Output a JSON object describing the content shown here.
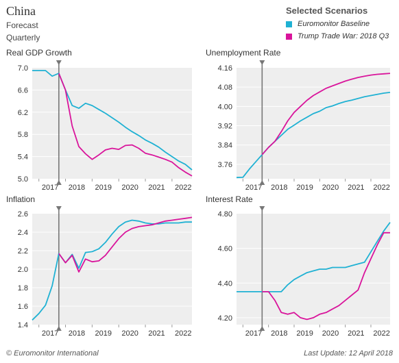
{
  "header": {
    "title": "China",
    "subtitle1": "Forecast",
    "subtitle2": "Quarterly"
  },
  "legend": {
    "title": "Selected Scenarios",
    "items": [
      {
        "label": "Euromonitor Baseline",
        "color": "#1fb1d3"
      },
      {
        "label": "Trump Trade War: 2018 Q3",
        "color": "#d9149b"
      }
    ]
  },
  "colors": {
    "baseline": "#1fb1d3",
    "scenario": "#d9149b",
    "panel_bg": "#eeeeee",
    "marker": "#777777"
  },
  "footer": {
    "source": "© Euromonitor International",
    "updated": "Last Update: 12 April 2018"
  },
  "chart_data": [
    {
      "type": "line",
      "title": "Real GDP Growth",
      "xlim": [
        2016.75,
        2022.75
      ],
      "ylim": [
        5.0,
        7.0
      ],
      "yticks": [
        "5.0",
        "5.4",
        "5.8",
        "6.2",
        "6.6",
        "7.0"
      ],
      "xticks": [
        "2017",
        "2018",
        "2019",
        "2020",
        "2021",
        "2022"
      ],
      "marker_x": 2017.75,
      "x": [
        2016.75,
        2017.0,
        2017.25,
        2017.5,
        2017.75,
        2018.0,
        2018.25,
        2018.5,
        2018.75,
        2019.0,
        2019.25,
        2019.5,
        2019.75,
        2020.0,
        2020.25,
        2020.5,
        2020.75,
        2021.0,
        2021.25,
        2021.5,
        2021.75,
        2022.0,
        2022.25,
        2022.5,
        2022.75
      ],
      "series": [
        {
          "name": "Euromonitor Baseline",
          "values": [
            6.95,
            6.95,
            6.95,
            6.85,
            6.9,
            6.6,
            6.32,
            6.27,
            6.36,
            6.32,
            6.25,
            6.18,
            6.1,
            6.02,
            5.93,
            5.85,
            5.78,
            5.7,
            5.64,
            5.57,
            5.48,
            5.4,
            5.32,
            5.26,
            5.16
          ]
        },
        {
          "name": "Trump Trade War: 2018 Q3",
          "values": [
            null,
            null,
            null,
            null,
            6.9,
            6.6,
            5.95,
            5.58,
            5.45,
            5.35,
            5.43,
            5.52,
            5.55,
            5.53,
            5.6,
            5.61,
            5.55,
            5.46,
            5.43,
            5.39,
            5.35,
            5.3,
            5.2,
            5.12,
            5.05
          ]
        }
      ]
    },
    {
      "type": "line",
      "title": "Unemployment Rate",
      "xlim": [
        2016.75,
        2022.75
      ],
      "ylim": [
        3.7,
        4.16
      ],
      "yticks": [
        "3.76",
        "3.84",
        "3.92",
        "4.00",
        "4.08",
        "4.16"
      ],
      "xticks": [
        "2017",
        "2018",
        "2019",
        "2020",
        "2021",
        "2022"
      ],
      "marker_x": 2017.75,
      "x": [
        2016.75,
        2017.0,
        2017.25,
        2017.5,
        2017.75,
        2018.0,
        2018.25,
        2018.5,
        2018.75,
        2019.0,
        2019.25,
        2019.5,
        2019.75,
        2020.0,
        2020.25,
        2020.5,
        2020.75,
        2021.0,
        2021.25,
        2021.5,
        2021.75,
        2022.0,
        2022.25,
        2022.5,
        2022.75
      ],
      "series": [
        {
          "name": "Euromonitor Baseline",
          "values": [
            3.705,
            3.706,
            3.74,
            3.77,
            3.8,
            3.83,
            3.855,
            3.88,
            3.905,
            3.922,
            3.94,
            3.955,
            3.97,
            3.98,
            3.995,
            4.002,
            4.012,
            4.02,
            4.026,
            4.033,
            4.04,
            4.045,
            4.05,
            4.055,
            4.058
          ]
        },
        {
          "name": "Trump Trade War: 2018 Q3",
          "values": [
            null,
            null,
            null,
            null,
            3.8,
            3.83,
            3.855,
            3.895,
            3.94,
            3.975,
            4.0,
            4.025,
            4.045,
            4.06,
            4.075,
            4.085,
            4.095,
            4.105,
            4.113,
            4.12,
            4.125,
            4.13,
            4.133,
            4.135,
            4.137
          ]
        }
      ]
    },
    {
      "type": "line",
      "title": "Inflation",
      "xlim": [
        2016.75,
        2022.75
      ],
      "ylim": [
        1.4,
        2.6
      ],
      "yticks": [
        "1.4",
        "1.6",
        "1.8",
        "2.0",
        "2.2",
        "2.4",
        "2.6"
      ],
      "xticks": [
        "2017",
        "2018",
        "2019",
        "2020",
        "2021",
        "2022"
      ],
      "marker_x": 2017.75,
      "x": [
        2016.75,
        2017.0,
        2017.25,
        2017.5,
        2017.75,
        2018.0,
        2018.25,
        2018.5,
        2018.75,
        2019.0,
        2019.25,
        2019.5,
        2019.75,
        2020.0,
        2020.25,
        2020.5,
        2020.75,
        2021.0,
        2021.25,
        2021.5,
        2021.75,
        2022.0,
        2022.25,
        2022.5,
        2022.75
      ],
      "series": [
        {
          "name": "Euromonitor Baseline",
          "values": [
            1.45,
            1.52,
            1.61,
            1.82,
            2.17,
            2.07,
            2.16,
            2.01,
            2.18,
            2.19,
            2.22,
            2.29,
            2.38,
            2.46,
            2.51,
            2.53,
            2.52,
            2.5,
            2.49,
            2.49,
            2.5,
            2.5,
            2.5,
            2.51,
            2.51
          ]
        },
        {
          "name": "Trump Trade War: 2018 Q3",
          "values": [
            null,
            null,
            null,
            null,
            2.17,
            2.07,
            2.15,
            1.97,
            2.11,
            2.08,
            2.09,
            2.15,
            2.24,
            2.33,
            2.4,
            2.44,
            2.46,
            2.47,
            2.48,
            2.5,
            2.52,
            2.53,
            2.54,
            2.55,
            2.56
          ]
        }
      ]
    },
    {
      "type": "line",
      "title": "Interest Rate",
      "xlim": [
        2016.75,
        2022.75
      ],
      "ylim": [
        4.16,
        4.8
      ],
      "yticks": [
        "4.20",
        "4.40",
        "4.60",
        "4.80"
      ],
      "xticks": [
        "2017",
        "2018",
        "2019",
        "2020",
        "2021",
        "2022"
      ],
      "marker_x": 2017.75,
      "x": [
        2016.75,
        2017.0,
        2017.25,
        2017.5,
        2017.75,
        2018.0,
        2018.25,
        2018.5,
        2018.75,
        2019.0,
        2019.25,
        2019.5,
        2019.75,
        2020.0,
        2020.25,
        2020.5,
        2020.75,
        2021.0,
        2021.25,
        2021.5,
        2021.75,
        2022.0,
        2022.25,
        2022.5,
        2022.75
      ],
      "series": [
        {
          "name": "Euromonitor Baseline",
          "values": [
            4.35,
            4.35,
            4.35,
            4.35,
            4.35,
            4.35,
            4.35,
            4.35,
            4.39,
            4.42,
            4.44,
            4.46,
            4.47,
            4.48,
            4.48,
            4.49,
            4.49,
            4.49,
            4.5,
            4.51,
            4.52,
            4.58,
            4.64,
            4.7,
            4.75
          ]
        },
        {
          "name": "Trump Trade War: 2018 Q3",
          "values": [
            null,
            null,
            null,
            null,
            4.35,
            4.35,
            4.3,
            4.23,
            4.22,
            4.23,
            4.2,
            4.19,
            4.2,
            4.22,
            4.23,
            4.25,
            4.27,
            4.3,
            4.33,
            4.36,
            4.46,
            4.54,
            4.62,
            4.69,
            4.69
          ]
        }
      ]
    }
  ]
}
